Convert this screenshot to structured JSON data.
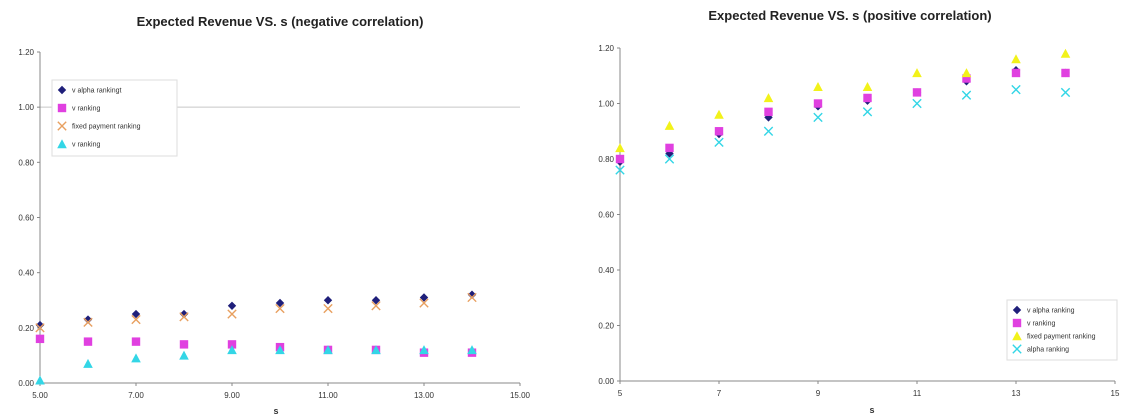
{
  "chart_data": [
    {
      "type": "scatter",
      "title": "Expected Revenue VS. s (negative correlation)",
      "xlabel": "s",
      "ylabel": "",
      "xlim": [
        5,
        15
      ],
      "ylim": [
        0,
        1.2
      ],
      "xticks": [
        5,
        7,
        9,
        11,
        13,
        15
      ],
      "xtick_labels": [
        "5.00",
        "7.00",
        "9.00",
        "11.00",
        "13.00",
        "15.00"
      ],
      "yticks": [
        0,
        0.2,
        0.4,
        0.6,
        0.8,
        1.0,
        1.2
      ],
      "ytick_labels": [
        "0.00",
        "0.20",
        "0.40",
        "0.60",
        "0.80",
        "1.00",
        "1.20"
      ],
      "grid": "horizontal line at 1.00 only",
      "legend_position": "top-left",
      "x": [
        5,
        6,
        7,
        8,
        9,
        10,
        11,
        12,
        13,
        14
      ],
      "series": [
        {
          "name": "v alpha rankingt",
          "marker": "diamond",
          "color": "#1f1f7a",
          "values": [
            0.21,
            0.23,
            0.25,
            0.25,
            0.28,
            0.29,
            0.3,
            0.3,
            0.31,
            0.32
          ]
        },
        {
          "name": "v ranking",
          "marker": "square",
          "color": "#e040e0",
          "values": [
            0.16,
            0.15,
            0.15,
            0.14,
            0.14,
            0.13,
            0.12,
            0.12,
            0.11,
            0.11
          ]
        },
        {
          "name": "fixed payment ranking",
          "marker": "x",
          "color": "#e8a060",
          "values": [
            0.2,
            0.22,
            0.23,
            0.24,
            0.25,
            0.27,
            0.27,
            0.28,
            0.29,
            0.31
          ]
        },
        {
          "name": "v ranking",
          "marker": "triangle",
          "color": "#33d6e6",
          "values": [
            0.01,
            0.07,
            0.09,
            0.1,
            0.12,
            0.12,
            0.12,
            0.12,
            0.12,
            0.12
          ]
        }
      ]
    },
    {
      "type": "scatter",
      "title": "Expected Revenue VS. s (positive correlation)",
      "xlabel": "s",
      "ylabel": "",
      "xlim": [
        5,
        15
      ],
      "ylim": [
        0,
        1.2
      ],
      "xticks": [
        5,
        7,
        9,
        11,
        13,
        15
      ],
      "xtick_labels": [
        "5",
        "7",
        "9",
        "11",
        "13",
        "15"
      ],
      "yticks": [
        0,
        0.2,
        0.4,
        0.6,
        0.8,
        1.0,
        1.2
      ],
      "ytick_labels": [
        "0.00",
        "0.20",
        "0.40",
        "0.60",
        "0.80",
        "1.00",
        "1.20"
      ],
      "grid": "none",
      "legend_position": "bottom-right",
      "x": [
        5,
        6,
        7,
        8,
        9,
        10,
        11,
        12,
        13,
        14
      ],
      "series": [
        {
          "name": "v alpha ranking",
          "marker": "diamond",
          "color": "#1f1f7a",
          "values": [
            0.79,
            0.82,
            0.89,
            0.95,
            0.99,
            1.01,
            1.04,
            1.08,
            1.12,
            1.11
          ]
        },
        {
          "name": "v ranking",
          "marker": "square",
          "color": "#e040e0",
          "values": [
            0.8,
            0.84,
            0.9,
            0.97,
            1.0,
            1.02,
            1.04,
            1.09,
            1.11,
            1.11
          ]
        },
        {
          "name": "fixed payment ranking",
          "marker": "triangle",
          "color": "#f2f21a",
          "values": [
            0.84,
            0.92,
            0.96,
            1.02,
            1.06,
            1.06,
            1.11,
            1.11,
            1.16,
            1.18
          ]
        },
        {
          "name": "alpha ranking",
          "marker": "x",
          "color": "#33d6e6",
          "values": [
            0.76,
            0.8,
            0.86,
            0.9,
            0.95,
            0.97,
            1.0,
            1.03,
            1.05,
            1.04
          ]
        }
      ]
    }
  ]
}
